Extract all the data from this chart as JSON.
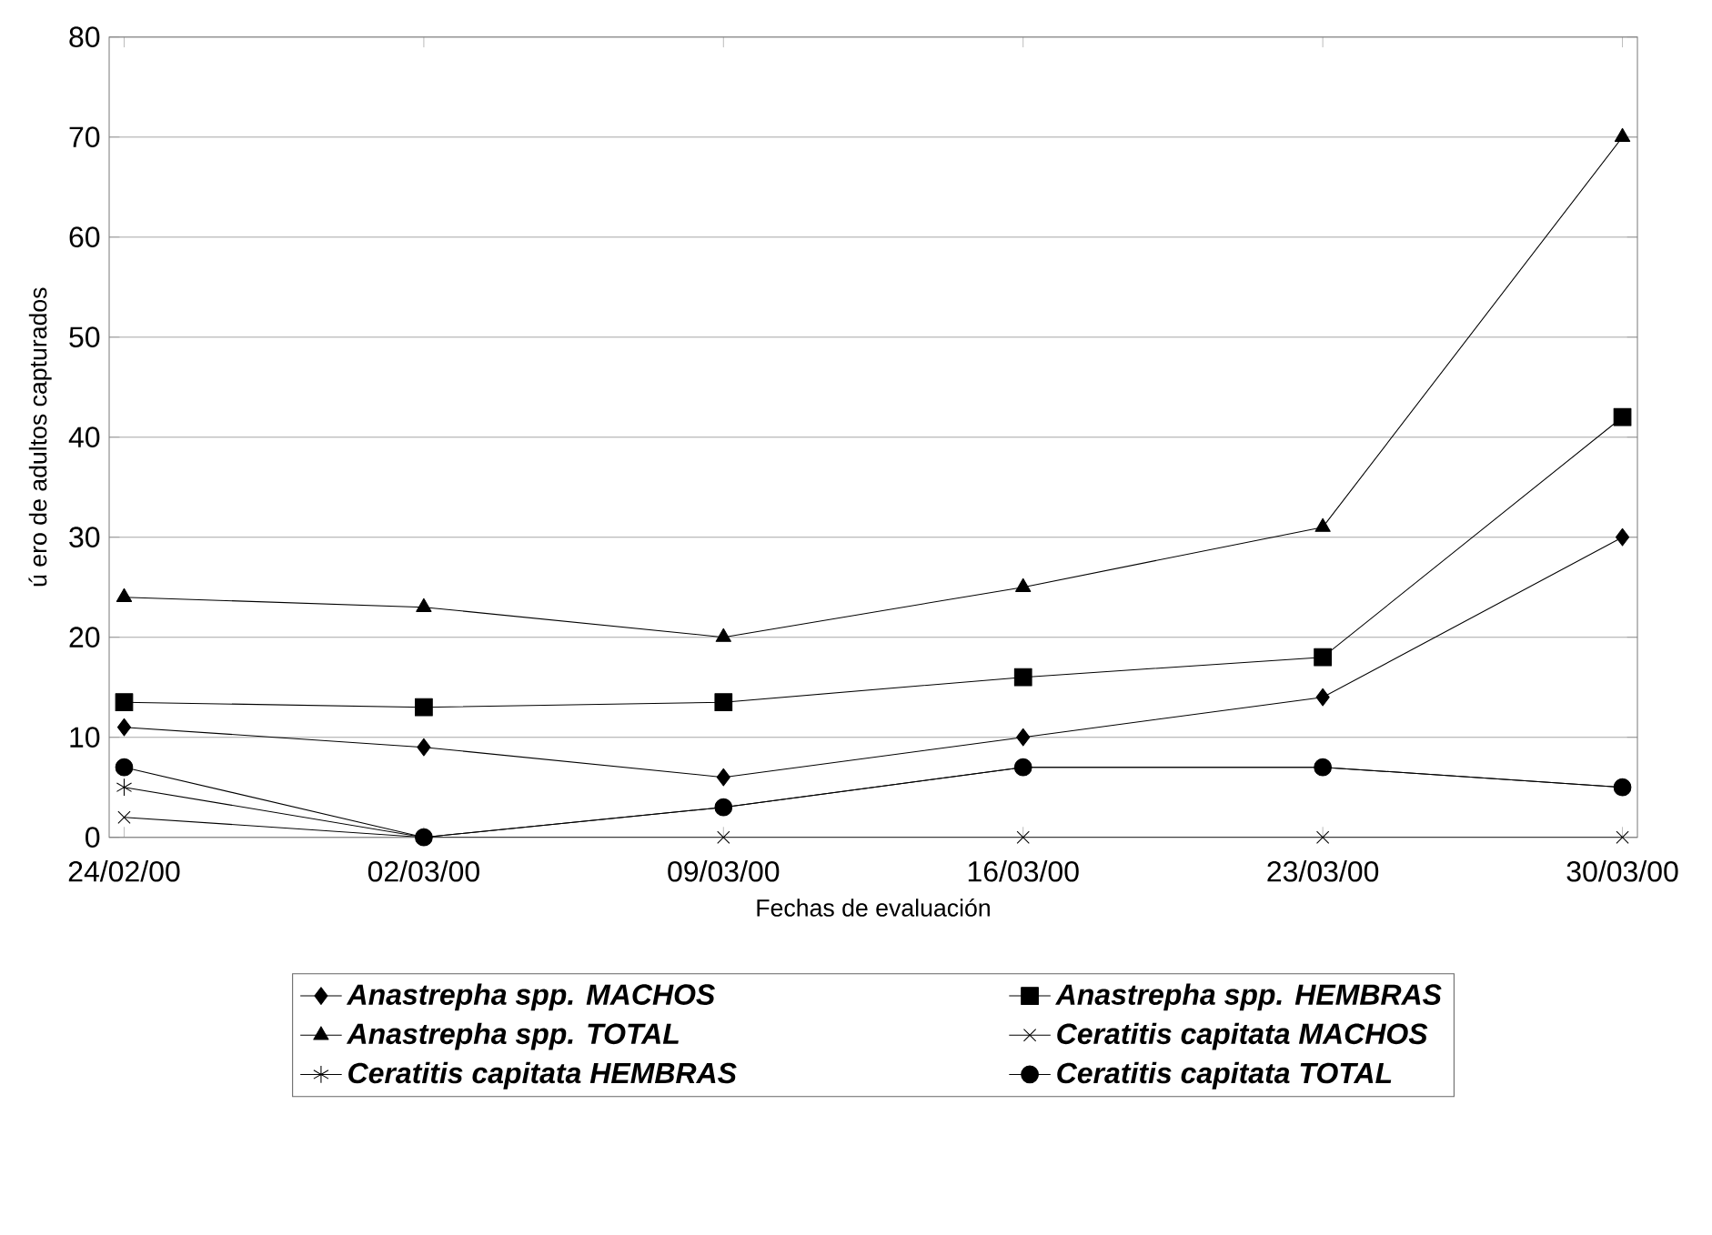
{
  "chart_data": {
    "type": "line",
    "xlabel": "Fechas de evaluación",
    "ylabel": "ú ero de adultos capturados",
    "categories": [
      "24/02/00",
      "02/03/00",
      "09/03/00",
      "16/03/00",
      "23/03/00",
      "30/03/00"
    ],
    "ylim": [
      0,
      80
    ],
    "yticks": [
      0,
      10,
      20,
      30,
      40,
      50,
      60,
      70,
      80
    ],
    "grid": "y",
    "legend": "bottom",
    "line_style": "solid",
    "series": [
      {
        "name": "Anastrepha spp. MACHOS",
        "color": "#000000",
        "marker": "diamond",
        "values": [
          11,
          9,
          6,
          10,
          14,
          30
        ]
      },
      {
        "name": "Anastrepha spp. HEMBRAS",
        "color": "#000000",
        "marker": "square",
        "values": [
          13.5,
          13,
          13.5,
          16,
          18,
          42
        ]
      },
      {
        "name": "Anastrepha spp. TOTAL",
        "color": "#000000",
        "marker": "triangle",
        "values": [
          24,
          23,
          20,
          25,
          31,
          70
        ]
      },
      {
        "name": "Ceratitis capitata MACHOS",
        "color": "#000000",
        "marker": "cross",
        "values": [
          2,
          0,
          0,
          0,
          0,
          0
        ]
      },
      {
        "name": "Ceratitis capitata HEMBRAS",
        "color": "#000000",
        "marker": "cross",
        "values": [
          5,
          0,
          3,
          7,
          7,
          5
        ]
      },
      {
        "name": "Ceratitis capitata TOTAL",
        "color": "#000000",
        "marker": "circle",
        "values": [
          7,
          0,
          3,
          7,
          7,
          5
        ]
      }
    ]
  }
}
